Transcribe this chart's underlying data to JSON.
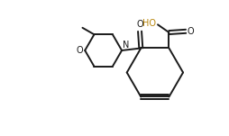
{
  "bg_color": "#ffffff",
  "line_color": "#1a1a1a",
  "ho_color": "#b8860b",
  "line_width": 1.4,
  "fig_width": 2.54,
  "fig_height": 1.51,
  "dpi": 100,
  "xlim": [
    0,
    10
  ],
  "ylim": [
    0,
    6
  ]
}
